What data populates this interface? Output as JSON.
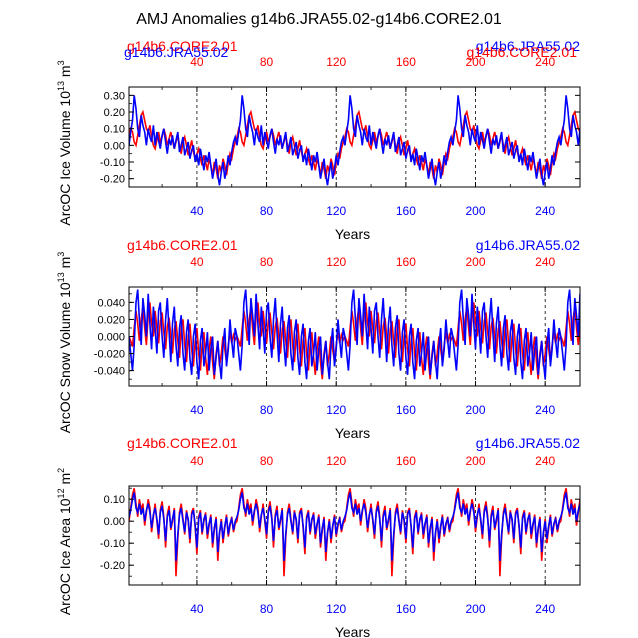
{
  "title": "AMJ Anomalies g14b6.JRA55.02-g14b6.CORE2.01",
  "colors": {
    "core": "#ff0000",
    "jra": "#0000ff",
    "axis": "#000000",
    "grid": "#000000"
  },
  "legend": {
    "core_label": "g14b6.CORE2.01",
    "jra_label": "g14b6.JRA55.02",
    "overlap_core_left": "g14b6.CORE2.01",
    "overlap_jra_left": "g14b6.JRA55.02",
    "overlap_jra_right": "g14b6.JRA55.02",
    "overlap_core_right": "g14b6.CORE2.01"
  },
  "chart_data": [
    {
      "type": "line",
      "id": "ice-volume",
      "ylabel_main": "ArcOC Ice Volume 10",
      "ylabel_exp": "13",
      "ylabel_unit": " m",
      "ylabel_unit_exp": "3",
      "xlabel": "Years",
      "xlim": [
        1,
        260
      ],
      "ylim": [
        -0.25,
        0.35
      ],
      "yticks": [
        "0.30",
        "0.20",
        "0.10",
        "0.00",
        "-0.10",
        "-0.20"
      ],
      "ytick_values": [
        0.3,
        0.2,
        0.1,
        0.0,
        -0.1,
        -0.2
      ],
      "xticks": [
        "40",
        "80",
        "120",
        "160",
        "200",
        "240"
      ],
      "xtick_values": [
        40,
        80,
        120,
        160,
        200,
        240
      ],
      "vlines": [
        40,
        80,
        120,
        160,
        200,
        240
      ],
      "cycle_length": 62,
      "series": [
        {
          "name": "g14b6.CORE2.01",
          "color": "#ff0000",
          "cycle": [
            0.05,
            0.1,
            0.08,
            0.02,
            0.0,
            0.06,
            0.12,
            0.18,
            0.2,
            0.15,
            0.1,
            0.08,
            0.12,
            0.05,
            0.0,
            -0.02,
            0.03,
            0.08,
            0.02,
            0.05,
            0.1,
            0.06,
            0.0,
            0.04,
            0.08,
            0.03,
            -0.02,
            0.02,
            0.06,
            0.0,
            -0.05,
            0.02,
            0.05,
            0.0,
            -0.06,
            -0.02,
            0.03,
            -0.04,
            -0.08,
            -0.05,
            -0.02,
            -0.08,
            -0.12,
            -0.06,
            -0.1,
            -0.15,
            -0.08,
            -0.12,
            -0.18,
            -0.1,
            -0.14,
            -0.2,
            -0.12,
            -0.16,
            -0.08,
            -0.12,
            -0.18,
            -0.1,
            -0.05,
            -0.08,
            -0.02,
            0.02
          ]
        },
        {
          "name": "g14b6.JRA55.02",
          "color": "#0000ff",
          "cycle": [
            0.0,
            0.08,
            0.15,
            0.3,
            0.22,
            0.1,
            0.05,
            0.18,
            0.12,
            0.08,
            0.0,
            0.1,
            0.05,
            0.02,
            0.12,
            0.0,
            0.08,
            0.03,
            -0.02,
            0.06,
            0.1,
            0.02,
            -0.05,
            0.04,
            0.0,
            0.06,
            -0.02,
            0.03,
            0.08,
            -0.04,
            0.0,
            0.05,
            -0.06,
            -0.02,
            0.02,
            -0.08,
            -0.03,
            0.0,
            -0.1,
            -0.05,
            -0.12,
            -0.02,
            -0.08,
            -0.15,
            -0.06,
            -0.1,
            -0.04,
            -0.12,
            -0.2,
            -0.14,
            -0.08,
            -0.18,
            -0.24,
            -0.16,
            -0.1,
            -0.2,
            -0.14,
            -0.06,
            -0.12,
            -0.04,
            0.02,
            0.05
          ]
        }
      ]
    },
    {
      "type": "line",
      "id": "snow-volume",
      "ylabel_main": "ArcOC Snow Volume 10",
      "ylabel_exp": "13",
      "ylabel_unit": " m",
      "ylabel_unit_exp": "3",
      "xlabel": "Years",
      "xlim": [
        1,
        260
      ],
      "ylim": [
        -0.058,
        0.058
      ],
      "yticks": [
        "0.040",
        "0.020",
        "0.000",
        "-0.020",
        "-0.040"
      ],
      "ytick_values": [
        0.04,
        0.02,
        0.0,
        -0.02,
        -0.04
      ],
      "xticks": [
        "40",
        "80",
        "120",
        "160",
        "200",
        "240"
      ],
      "xtick_values": [
        40,
        80,
        120,
        160,
        200,
        240
      ],
      "vlines": [
        40,
        80,
        120,
        160,
        200,
        240
      ],
      "cycle_length": 62,
      "series": [
        {
          "name": "g14b6.CORE2.01",
          "color": "#ff0000",
          "cycle": [
            0.0,
            -0.005,
            -0.012,
            0.01,
            0.03,
            0.015,
            -0.005,
            0.02,
            0.035,
            0.01,
            -0.01,
            0.025,
            0.04,
            0.015,
            0.0,
            0.03,
            0.01,
            -0.008,
            0.018,
            0.028,
            0.005,
            -0.015,
            0.012,
            0.022,
            0.0,
            -0.02,
            0.008,
            0.018,
            -0.005,
            -0.025,
            0.01,
            0.02,
            -0.01,
            -0.03,
            0.0,
            0.015,
            -0.015,
            -0.035,
            -0.005,
            0.01,
            -0.02,
            -0.04,
            -0.01,
            0.005,
            -0.025,
            -0.045,
            -0.015,
            0.0,
            -0.03,
            -0.05,
            -0.02,
            -0.005,
            -0.035,
            -0.02,
            0.0,
            -0.015,
            -0.03,
            -0.01,
            0.005,
            -0.008,
            0.002,
            -0.004
          ]
        },
        {
          "name": "g14b6.JRA55.02",
          "color": "#0000ff",
          "cycle": [
            0.0,
            -0.02,
            -0.04,
            -0.01,
            0.04,
            0.055,
            0.02,
            -0.01,
            0.045,
            0.025,
            0.0,
            0.05,
            0.015,
            -0.015,
            0.035,
            0.01,
            -0.02,
            0.03,
            0.04,
            0.0,
            -0.025,
            0.02,
            0.045,
            0.005,
            -0.03,
            0.015,
            0.035,
            -0.01,
            -0.035,
            0.01,
            0.025,
            -0.02,
            -0.04,
            0.005,
            0.02,
            -0.025,
            -0.045,
            0.0,
            0.015,
            -0.03,
            -0.05,
            -0.005,
            0.01,
            -0.035,
            -0.02,
            0.005,
            -0.04,
            -0.015,
            0.0,
            -0.045,
            -0.025,
            -0.005,
            -0.03,
            -0.05,
            -0.01,
            0.01,
            -0.035,
            -0.015,
            0.02,
            -0.005,
            -0.025,
            0.01
          ]
        }
      ]
    },
    {
      "type": "line",
      "id": "ice-area",
      "ylabel_main": "ArcOC Ice Area 10",
      "ylabel_exp": "12",
      "ylabel_unit": " m",
      "ylabel_unit_exp": "2",
      "xlabel": "Years",
      "xlim": [
        1,
        260
      ],
      "ylim": [
        -0.29,
        0.16
      ],
      "yticks": [
        "0.10",
        "0.00",
        "-0.10",
        "-0.20"
      ],
      "ytick_values": [
        0.1,
        0.0,
        -0.1,
        -0.2
      ],
      "xticks": [
        "40",
        "80",
        "120",
        "160",
        "200",
        "240"
      ],
      "xtick_values": [
        40,
        80,
        120,
        160,
        200,
        240
      ],
      "vlines": [
        40,
        80,
        120,
        160,
        200,
        240
      ],
      "cycle_length": 62,
      "series": [
        {
          "name": "g14b6.CORE2.01",
          "color": "#ff0000",
          "cycle": [
            0.0,
            0.06,
            0.12,
            0.15,
            0.08,
            0.02,
            0.1,
            0.05,
            0.08,
            -0.02,
            0.04,
            0.1,
            0.06,
            -0.05,
            0.02,
            0.08,
            0.0,
            -0.08,
            0.05,
            0.09,
            0.02,
            -0.12,
            0.03,
            0.07,
            -0.04,
            0.0,
            0.06,
            -0.25,
            -0.08,
            0.04,
            0.08,
            0.01,
            -0.06,
            0.05,
            0.0,
            -0.1,
            0.04,
            0.06,
            -0.03,
            -0.15,
            0.02,
            0.05,
            -0.06,
            0.0,
            0.04,
            -0.08,
            -0.02,
            0.03,
            -0.12,
            -0.04,
            0.02,
            -0.18,
            -0.06,
            0.01,
            -0.1,
            -0.03,
            0.03,
            -0.07,
            -0.02,
            0.02,
            -0.05,
            -0.01
          ]
        },
        {
          "name": "g14b6.JRA55.02",
          "color": "#0000ff",
          "cycle": [
            0.02,
            0.05,
            0.1,
            0.13,
            0.06,
            0.04,
            0.08,
            0.03,
            0.06,
            0.0,
            0.05,
            0.08,
            0.04,
            -0.03,
            0.03,
            0.06,
            0.01,
            -0.06,
            0.04,
            0.07,
            0.01,
            -0.09,
            0.02,
            0.05,
            -0.03,
            0.01,
            0.05,
            -0.18,
            -0.06,
            0.03,
            0.06,
            0.0,
            -0.05,
            0.04,
            0.01,
            -0.08,
            0.03,
            0.05,
            -0.02,
            -0.12,
            0.01,
            0.04,
            -0.05,
            0.01,
            0.03,
            -0.06,
            -0.01,
            0.02,
            -0.1,
            -0.03,
            0.01,
            -0.14,
            -0.05,
            0.0,
            -0.08,
            -0.02,
            0.02,
            -0.06,
            -0.01,
            0.01,
            -0.04,
            0.0
          ]
        }
      ]
    }
  ]
}
